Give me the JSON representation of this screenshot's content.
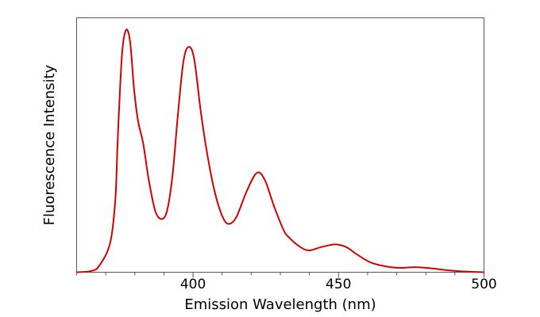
{
  "chart_data": {
    "type": "line",
    "title": "",
    "xlabel": "Emission Wavelength (nm)",
    "ylabel": "Fluorescence Intensity",
    "xlim": [
      360,
      500
    ],
    "ylim": [
      0,
      1.05
    ],
    "xticks": [
      400,
      450,
      500
    ],
    "xtick_labels": [
      "400",
      "450",
      "500"
    ],
    "x_minor_tick_step": 10,
    "yticks": [],
    "grid": false,
    "legend": "none",
    "line_color": "#d40000",
    "series": [
      {
        "x": [
          360,
          365,
          367.8,
          371.5,
          373.3,
          374.2,
          375.6,
          377,
          378.4,
          379.7,
          381.1,
          382.9,
          384.8,
          387.1,
          389.4,
          391.2,
          393,
          394.8,
          396.7,
          398.5,
          400.4,
          402.7,
          405,
          407.7,
          410.5,
          412.6,
          415,
          418.3,
          421.9,
          424.7,
          427.9,
          431.1,
          432.7,
          436.5,
          439.8,
          444.1,
          448.8,
          452.6,
          456.4,
          461.1,
          466.8,
          471.5,
          476.3,
          481,
          488.6,
          495.2,
          500
        ],
        "y": [
          0,
          0.005,
          0.027,
          0.12,
          0.3,
          0.57,
          0.9,
          1.0,
          0.95,
          0.76,
          0.625,
          0.53,
          0.38,
          0.25,
          0.22,
          0.26,
          0.405,
          0.65,
          0.87,
          0.93,
          0.88,
          0.66,
          0.48,
          0.32,
          0.22,
          0.2,
          0.23,
          0.33,
          0.41,
          0.38,
          0.27,
          0.175,
          0.147,
          0.107,
          0.09,
          0.104,
          0.115,
          0.104,
          0.073,
          0.04,
          0.023,
          0.018,
          0.021,
          0.017,
          0.007,
          0.002,
          0
        ]
      }
    ]
  }
}
